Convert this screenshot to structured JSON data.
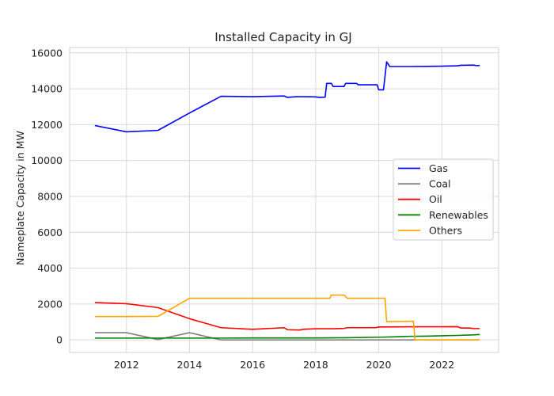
{
  "chart_data": {
    "type": "line",
    "title": "Installed Capacity in GJ",
    "xlabel": "",
    "ylabel": "Nameplate Capacity in MW",
    "xlim": [
      2010.2,
      2023.8
    ],
    "ylim": [
      -700,
      16300
    ],
    "x_ticks": [
      "2012",
      "2014",
      "2016",
      "2018",
      "2020",
      "2022"
    ],
    "y_ticks": [
      "0",
      "2000",
      "4000",
      "6000",
      "8000",
      "10000",
      "12000",
      "14000",
      "16000"
    ],
    "grid": true,
    "legend_position": "center-right",
    "series": [
      {
        "name": "Gas",
        "color": "#0000ff",
        "points": [
          [
            2011.0,
            11950
          ],
          [
            2012.0,
            11600
          ],
          [
            2013.0,
            11680
          ],
          [
            2014.0,
            12650
          ],
          [
            2015.0,
            13580
          ],
          [
            2016.0,
            13560
          ],
          [
            2017.0,
            13600
          ],
          [
            2017.1,
            13520
          ],
          [
            2017.4,
            13560
          ],
          [
            2018.0,
            13550
          ],
          [
            2018.1,
            13520
          ],
          [
            2018.3,
            13530
          ],
          [
            2018.35,
            14300
          ],
          [
            2018.5,
            14300
          ],
          [
            2018.55,
            14130
          ],
          [
            2018.9,
            14130
          ],
          [
            2018.95,
            14300
          ],
          [
            2019.3,
            14300
          ],
          [
            2019.35,
            14220
          ],
          [
            2019.95,
            14220
          ],
          [
            2020.0,
            13940
          ],
          [
            2020.15,
            13940
          ],
          [
            2020.25,
            15500
          ],
          [
            2020.35,
            15240
          ],
          [
            2021.0,
            15240
          ],
          [
            2021.5,
            15250
          ],
          [
            2022.0,
            15260
          ],
          [
            2022.5,
            15280
          ],
          [
            2022.6,
            15310
          ],
          [
            2023.0,
            15320
          ],
          [
            2023.1,
            15290
          ],
          [
            2023.2,
            15300
          ]
        ]
      },
      {
        "name": "Coal",
        "color": "#808080",
        "points": [
          [
            2011.0,
            400
          ],
          [
            2012.0,
            400
          ],
          [
            2013.0,
            20
          ],
          [
            2014.0,
            400
          ],
          [
            2015.0,
            0
          ],
          [
            2016.0,
            0
          ],
          [
            2017.0,
            0
          ],
          [
            2018.0,
            0
          ],
          [
            2019.0,
            0
          ],
          [
            2020.0,
            0
          ],
          [
            2021.0,
            0
          ],
          [
            2022.0,
            0
          ],
          [
            2023.2,
            0
          ]
        ]
      },
      {
        "name": "Oil",
        "color": "#ff0000",
        "points": [
          [
            2011.0,
            2080
          ],
          [
            2012.0,
            2020
          ],
          [
            2013.0,
            1800
          ],
          [
            2014.0,
            1180
          ],
          [
            2015.0,
            680
          ],
          [
            2016.0,
            590
          ],
          [
            2017.0,
            680
          ],
          [
            2017.1,
            570
          ],
          [
            2017.5,
            550
          ],
          [
            2017.6,
            590
          ],
          [
            2018.0,
            620
          ],
          [
            2018.6,
            620
          ],
          [
            2018.9,
            640
          ],
          [
            2019.0,
            680
          ],
          [
            2019.9,
            680
          ],
          [
            2020.0,
            720
          ],
          [
            2021.0,
            730
          ],
          [
            2021.5,
            730
          ],
          [
            2022.0,
            730
          ],
          [
            2022.5,
            740
          ],
          [
            2022.6,
            660
          ],
          [
            2022.9,
            660
          ],
          [
            2023.0,
            630
          ],
          [
            2023.2,
            630
          ]
        ]
      },
      {
        "name": "Renewables",
        "color": "#008000",
        "points": [
          [
            2011.0,
            100
          ],
          [
            2012.0,
            100
          ],
          [
            2013.0,
            100
          ],
          [
            2014.0,
            100
          ],
          [
            2015.0,
            100
          ],
          [
            2016.0,
            110
          ],
          [
            2017.0,
            110
          ],
          [
            2018.0,
            110
          ],
          [
            2019.0,
            120
          ],
          [
            2020.0,
            150
          ],
          [
            2020.5,
            170
          ],
          [
            2021.0,
            200
          ],
          [
            2021.5,
            210
          ],
          [
            2022.0,
            230
          ],
          [
            2022.5,
            250
          ],
          [
            2023.0,
            280
          ],
          [
            2023.2,
            300
          ]
        ]
      },
      {
        "name": "Others",
        "color": "#ffa500",
        "points": [
          [
            2011.0,
            1300
          ],
          [
            2012.0,
            1300
          ],
          [
            2013.0,
            1310
          ],
          [
            2014.0,
            2320
          ],
          [
            2015.0,
            2320
          ],
          [
            2016.0,
            2320
          ],
          [
            2017.0,
            2320
          ],
          [
            2018.0,
            2320
          ],
          [
            2018.45,
            2320
          ],
          [
            2018.5,
            2500
          ],
          [
            2018.9,
            2500
          ],
          [
            2019.0,
            2320
          ],
          [
            2019.5,
            2320
          ],
          [
            2020.0,
            2320
          ],
          [
            2020.2,
            2320
          ],
          [
            2020.25,
            1020
          ],
          [
            2020.8,
            1030
          ],
          [
            2021.1,
            1040
          ],
          [
            2021.15,
            0
          ],
          [
            2022.0,
            0
          ],
          [
            2023.2,
            0
          ]
        ]
      }
    ]
  }
}
